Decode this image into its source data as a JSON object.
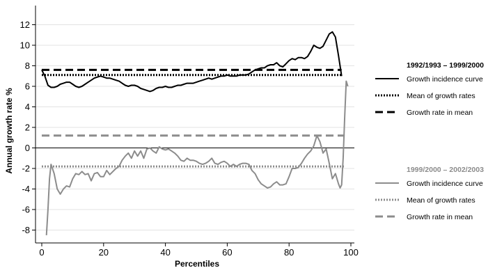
{
  "chart_data": {
    "type": "line",
    "xlabel": "Percentiles",
    "ylabel": "Annual growth rate %",
    "xlim": [
      0,
      100
    ],
    "ylim": [
      -9,
      13.5
    ],
    "x_ticks": [
      0,
      20,
      40,
      60,
      80,
      100
    ],
    "y_ticks": [
      -8,
      -6,
      -4,
      -2,
      0,
      2,
      4,
      6,
      8,
      10,
      12
    ],
    "grid": "horizontal",
    "zero_line": true,
    "legend_position": "right",
    "groups": [
      {
        "title": "1992/1993 – 1999/2000",
        "color": "#000000",
        "labels": [
          "Growth incidence curve",
          "Mean of growth rates",
          "Growth rate in mean"
        ]
      },
      {
        "title": "1999/2000 – 2002/2003",
        "color": "#8c8c8c",
        "labels": [
          "Growth incidence curve",
          "Mean of growth rates",
          "Growth rate in mean"
        ]
      }
    ],
    "series": [
      {
        "group": 0,
        "style": "solid",
        "color": "#000000",
        "x": [
          0,
          1,
          2,
          3,
          4,
          5,
          6,
          7,
          8,
          9,
          10,
          11,
          12,
          13,
          14,
          15,
          16,
          17,
          18,
          19,
          20,
          21,
          22,
          23,
          24,
          25,
          26,
          27,
          28,
          29,
          30,
          31,
          32,
          33,
          34,
          35,
          36,
          37,
          38,
          39,
          40,
          41,
          42,
          43,
          44,
          45,
          46,
          47,
          48,
          49,
          50,
          51,
          52,
          53,
          54,
          55,
          56,
          57,
          58,
          59,
          60,
          61,
          62,
          63,
          64,
          65,
          66,
          67,
          68,
          69,
          70,
          71,
          72,
          73,
          74,
          75,
          76,
          77,
          78,
          79,
          80,
          81,
          82,
          83,
          84,
          85,
          86,
          87,
          88,
          89,
          90,
          91,
          92,
          93,
          94,
          95,
          96,
          97
        ],
        "y": [
          7.6,
          7.0,
          6.1,
          5.9,
          5.9,
          6.0,
          6.2,
          6.3,
          6.4,
          6.4,
          6.2,
          6.0,
          5.9,
          6.0,
          6.2,
          6.4,
          6.6,
          6.8,
          6.9,
          7.0,
          6.9,
          6.8,
          6.8,
          6.7,
          6.6,
          6.5,
          6.3,
          6.1,
          6.0,
          6.1,
          6.1,
          6.0,
          5.8,
          5.7,
          5.6,
          5.5,
          5.6,
          5.8,
          5.9,
          5.9,
          6.0,
          5.9,
          5.9,
          6.0,
          6.1,
          6.1,
          6.2,
          6.3,
          6.3,
          6.3,
          6.4,
          6.5,
          6.6,
          6.7,
          6.8,
          6.7,
          6.8,
          6.9,
          7.0,
          7.0,
          7.1,
          7.0,
          7.0,
          7.0,
          7.1,
          7.1,
          7.1,
          7.2,
          7.4,
          7.6,
          7.7,
          7.8,
          7.8,
          8.0,
          8.1,
          8.1,
          8.3,
          8.0,
          7.9,
          8.2,
          8.5,
          8.7,
          8.6,
          8.8,
          8.8,
          8.7,
          8.9,
          9.4,
          10.0,
          9.8,
          9.7,
          9.9,
          10.5,
          11.1,
          11.3,
          10.8,
          9.0,
          7.0
        ]
      },
      {
        "group": 0,
        "style": "dotted",
        "color": "#000000",
        "x": [
          0,
          97
        ],
        "y": [
          7.1,
          7.1
        ]
      },
      {
        "group": 0,
        "style": "dashed",
        "color": "#000000",
        "x": [
          0,
          97
        ],
        "y": [
          7.6,
          7.6
        ]
      },
      {
        "group": 1,
        "style": "solid",
        "color": "#8c8c8c",
        "x": [
          1.5,
          2,
          2.5,
          3,
          4,
          5,
          6,
          7,
          8,
          9,
          10,
          11,
          12,
          13,
          14,
          15,
          16,
          17,
          18,
          19,
          20,
          21,
          22,
          23,
          24,
          25,
          26,
          27,
          28,
          29,
          30,
          31,
          32,
          33,
          34,
          35,
          36,
          37,
          38,
          39,
          40,
          41,
          42,
          43,
          44,
          45,
          46,
          47,
          48,
          49,
          50,
          51,
          52,
          53,
          54,
          55,
          56,
          57,
          58,
          59,
          60,
          61,
          62,
          63,
          64,
          65,
          66,
          67,
          68,
          69,
          70,
          71,
          72,
          73,
          74,
          75,
          76,
          77,
          78,
          79,
          80,
          81,
          82,
          83,
          84,
          85,
          86,
          87,
          88,
          89,
          90,
          91,
          92,
          93,
          94,
          95,
          96,
          96.5,
          97,
          97.5,
          98,
          98.5,
          99
        ],
        "y": [
          -8.5,
          -6.0,
          -3.0,
          -1.6,
          -2.5,
          -4.0,
          -4.5,
          -4.0,
          -3.7,
          -3.8,
          -3.0,
          -2.5,
          -2.6,
          -2.3,
          -2.6,
          -2.5,
          -3.2,
          -2.5,
          -2.4,
          -2.8,
          -2.8,
          -2.2,
          -2.6,
          -2.3,
          -2.0,
          -1.8,
          -1.2,
          -0.8,
          -0.5,
          -1.0,
          -0.3,
          -0.8,
          -0.3,
          -1.0,
          -0.1,
          0.0,
          -0.3,
          -0.5,
          0.1,
          -0.1,
          -0.2,
          -0.1,
          -0.3,
          -0.5,
          -0.8,
          -1.2,
          -1.3,
          -1.0,
          -1.2,
          -1.2,
          -1.3,
          -1.5,
          -1.6,
          -1.5,
          -1.3,
          -1.0,
          -1.5,
          -1.6,
          -1.4,
          -1.3,
          -1.5,
          -1.8,
          -1.6,
          -1.8,
          -1.6,
          -1.5,
          -1.5,
          -1.6,
          -2.2,
          -2.5,
          -3.1,
          -3.5,
          -3.7,
          -3.9,
          -3.8,
          -3.5,
          -3.3,
          -3.6,
          -3.6,
          -3.5,
          -2.8,
          -2.0,
          -2.0,
          -1.9,
          -1.5,
          -1.0,
          -0.6,
          -0.3,
          0.2,
          1.2,
          0.6,
          -0.5,
          -0.1,
          -1.5,
          -3.0,
          -2.5,
          -3.5,
          -3.9,
          -3.6,
          -1.0,
          3.0,
          6.5,
          6.0
        ]
      },
      {
        "group": 1,
        "style": "dotted",
        "color": "#8c8c8c",
        "x": [
          0,
          98
        ],
        "y": [
          -1.8,
          -1.8
        ]
      },
      {
        "group": 1,
        "style": "dashed",
        "color": "#8c8c8c",
        "x": [
          0,
          98
        ],
        "y": [
          1.2,
          1.2
        ]
      }
    ]
  }
}
